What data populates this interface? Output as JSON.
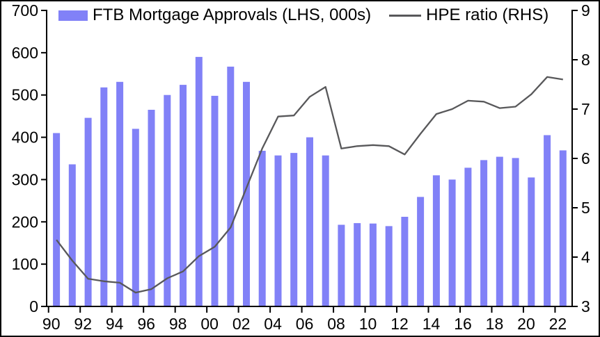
{
  "chart_data": {
    "type": "bar",
    "title": "",
    "categories": [
      1990,
      1991,
      1992,
      1993,
      1994,
      1995,
      1996,
      1997,
      1998,
      1999,
      2000,
      2001,
      2002,
      2003,
      2004,
      2005,
      2006,
      2007,
      2008,
      2009,
      2010,
      2011,
      2012,
      2013,
      2014,
      2015,
      2016,
      2017,
      2018,
      2019,
      2020,
      2021,
      2022
    ],
    "x_tick_labels": [
      "90",
      "92",
      "94",
      "96",
      "98",
      "00",
      "02",
      "04",
      "06",
      "08",
      "10",
      "12",
      "14",
      "16",
      "18",
      "20",
      "22"
    ],
    "series": [
      {
        "name": "FTB Mortgage Approvals (LHS, 000s)",
        "type": "bar",
        "axis": "left",
        "color": "#8181f7",
        "values": [
          410,
          336,
          446,
          518,
          531,
          420,
          465,
          500,
          524,
          590,
          498,
          567,
          531,
          368,
          357,
          363,
          400,
          357,
          193,
          197,
          196,
          190,
          212,
          259,
          310,
          300,
          328,
          346,
          354,
          351,
          305,
          405,
          369
        ]
      },
      {
        "name": "HPE ratio (RHS)",
        "type": "line",
        "axis": "right",
        "color": "#58585a",
        "values": [
          4.35,
          3.93,
          3.56,
          3.51,
          3.48,
          3.28,
          3.35,
          3.57,
          3.71,
          4.02,
          4.21,
          4.6,
          5.4,
          6.2,
          6.85,
          6.87,
          7.25,
          7.45,
          6.2,
          6.25,
          6.27,
          6.25,
          6.08,
          6.5,
          6.9,
          7.0,
          7.17,
          7.15,
          7.02,
          7.05,
          7.3,
          7.65,
          7.6
        ]
      }
    ],
    "left_axis": {
      "min": 0,
      "max": 700,
      "ticks": [
        0,
        100,
        200,
        300,
        400,
        500,
        600,
        700
      ]
    },
    "right_axis": {
      "min": 3,
      "max": 9,
      "ticks": [
        3,
        4,
        5,
        6,
        7,
        8,
        9
      ]
    },
    "legend_position": "top",
    "grid": false,
    "frame_color": "#000000",
    "background_color": "#ffffff"
  }
}
